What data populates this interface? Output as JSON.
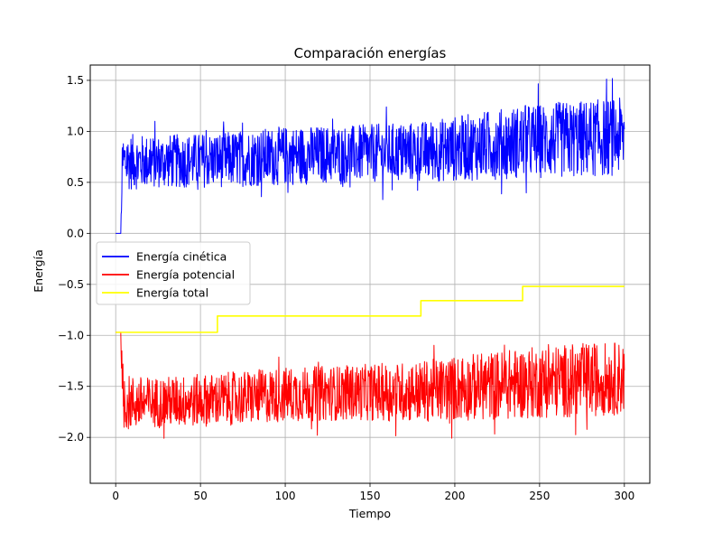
{
  "chart_data": {
    "type": "line",
    "title": "Comparación energías",
    "xlabel": "Tiempo",
    "ylabel": "Energía",
    "xlim": [
      -15,
      315
    ],
    "ylim": [
      -2.45,
      1.65
    ],
    "xticks": [
      0,
      50,
      100,
      150,
      200,
      250,
      300
    ],
    "yticks": [
      -2.0,
      -1.5,
      -1.0,
      -0.5,
      0.0,
      0.5,
      1.0,
      1.5
    ],
    "xtick_labels": [
      "0",
      "50",
      "100",
      "150",
      "200",
      "250",
      "300"
    ],
    "ytick_labels": [
      "−2.0",
      "−1.5",
      "−1.0",
      "−0.5",
      "0.0",
      "0.5",
      "1.0",
      "1.5"
    ],
    "grid": true,
    "legend_position": "center-left",
    "series": [
      {
        "name": "Energía cinética",
        "color": "#0000ff",
        "style": "noisy-band",
        "x": [
          0,
          3,
          4,
          20,
          60,
          100,
          140,
          180,
          200,
          240,
          270,
          300
        ],
        "y_mean": [
          0.0,
          0.0,
          0.7,
          0.7,
          0.72,
          0.76,
          0.78,
          0.8,
          0.83,
          0.9,
          0.92,
          0.95
        ],
        "y_spread": [
          0.0,
          0.0,
          0.28,
          0.26,
          0.27,
          0.29,
          0.28,
          0.3,
          0.32,
          0.36,
          0.38,
          0.38
        ]
      },
      {
        "name": "Energía potencial",
        "color": "#ff0000",
        "style": "noisy-band",
        "x": [
          0,
          3,
          4,
          20,
          60,
          100,
          140,
          180,
          200,
          240,
          270,
          300
        ],
        "y_mean": [
          -0.97,
          -0.97,
          -1.66,
          -1.66,
          -1.63,
          -1.58,
          -1.56,
          -1.55,
          -1.52,
          -1.47,
          -1.44,
          -1.42
        ],
        "y_spread": [
          0.0,
          0.0,
          0.28,
          0.25,
          0.26,
          0.27,
          0.27,
          0.3,
          0.32,
          0.35,
          0.36,
          0.36
        ]
      },
      {
        "name": "Energía total",
        "color": "#ffff00",
        "style": "step",
        "x": [
          0,
          60,
          60,
          180,
          180,
          240,
          240,
          300
        ],
        "y": [
          -0.97,
          -0.97,
          -0.81,
          -0.81,
          -0.66,
          -0.66,
          -0.52,
          -0.52
        ]
      }
    ]
  }
}
